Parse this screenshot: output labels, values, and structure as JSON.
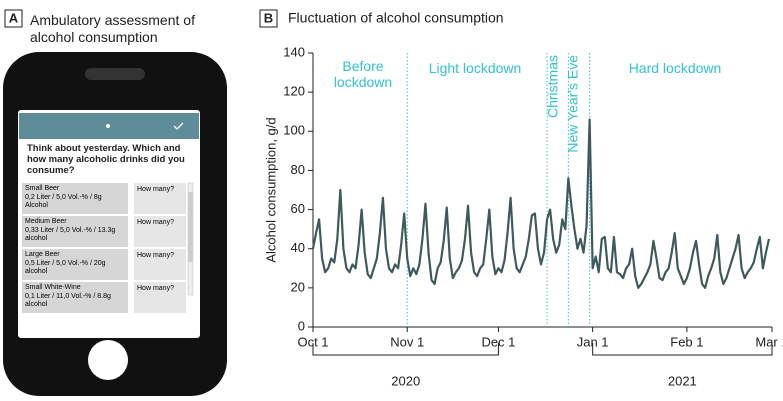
{
  "panel_a": {
    "label": "A",
    "title": "Ambulatory assessment of alcohol consumption",
    "question": "Think about yesterday. Which and how many alcoholic drinks did you consume?",
    "items": [
      {
        "name": "Small Beer",
        "detail": "0,2 Liter / 5,0 Vol.-% / 8g Alcohol",
        "prompt": "How many?"
      },
      {
        "name": "Medium Beer",
        "detail": "0,33 Liter / 5,0 Vol.-% / 13.3g alcohol",
        "prompt": "How many?"
      },
      {
        "name": "Large Beer",
        "detail": "0,5 Liter / 5,0 Vol.-% / 20g alcohol",
        "prompt": "How many?"
      },
      {
        "name": "Small White-Wine",
        "detail": "0,1 Liter / 11,0 Vol.-% / 8.8g alcohol",
        "prompt": "How many?"
      }
    ]
  },
  "chart_data": {
    "type": "line",
    "panel_label": "B",
    "title": "Fluctuation of alcohol consumption",
    "y_label": "Alcohol consumption, g/d",
    "color": "#3f5a5e",
    "xlim": [
      0,
      151
    ],
    "xticks": [
      {
        "value": 0,
        "label": "Oct 1"
      },
      {
        "value": 31,
        "label": "Nov 1"
      },
      {
        "value": 61,
        "label": "Dec 1"
      },
      {
        "value": 92,
        "label": "Jan 1"
      },
      {
        "value": 123,
        "label": "Feb 1"
      },
      {
        "value": 151,
        "label": "Mar 1"
      }
    ],
    "ylim": [
      0,
      140
    ],
    "yticks": [
      0,
      20,
      40,
      60,
      80,
      100,
      120,
      140
    ],
    "phase_lines": [
      31,
      77,
      84,
      91
    ],
    "annotations": [
      "Before lockdown",
      "Light lockdown",
      "Christmas",
      "New Year's Eve",
      "Hard lockdown"
    ],
    "year_spans": [
      {
        "label": "2020",
        "start": 0,
        "end": 61
      },
      {
        "label": "2021",
        "start": 92,
        "end": 151
      }
    ],
    "x": [
      0,
      1,
      2,
      3,
      4,
      5,
      6,
      7,
      8,
      9,
      10,
      11,
      12,
      13,
      14,
      15,
      16,
      17,
      18,
      19,
      20,
      21,
      22,
      23,
      24,
      25,
      26,
      27,
      28,
      29,
      30,
      31,
      32,
      33,
      34,
      35,
      36,
      37,
      38,
      39,
      40,
      41,
      42,
      43,
      44,
      45,
      46,
      47,
      48,
      49,
      50,
      51,
      52,
      53,
      54,
      55,
      56,
      57,
      58,
      59,
      60,
      61,
      62,
      63,
      64,
      65,
      66,
      67,
      68,
      69,
      70,
      71,
      72,
      73,
      74,
      75,
      76,
      77,
      78,
      79,
      80,
      81,
      82,
      83,
      84,
      85,
      86,
      87,
      88,
      89,
      90,
      91,
      92,
      93,
      94,
      95,
      96,
      97,
      98,
      99,
      100,
      101,
      102,
      103,
      104,
      105,
      106,
      107,
      108,
      109,
      110,
      111,
      112,
      113,
      114,
      115,
      116,
      117,
      118,
      119,
      120,
      121,
      122,
      123,
      124,
      125,
      126,
      127,
      128,
      129,
      130,
      131,
      132,
      133,
      134,
      135,
      136,
      137,
      138,
      139,
      140,
      141,
      142,
      143,
      144,
      145,
      146,
      147,
      148,
      149,
      150
    ],
    "values": [
      40,
      48,
      55,
      35,
      28,
      30,
      35,
      33,
      45,
      70,
      40,
      30,
      28,
      32,
      30,
      42,
      60,
      38,
      27,
      25,
      30,
      35,
      48,
      66,
      40,
      30,
      28,
      32,
      30,
      42,
      58,
      35,
      26,
      30,
      27,
      32,
      45,
      63,
      38,
      24,
      22,
      30,
      33,
      44,
      61,
      35,
      25,
      28,
      30,
      34,
      45,
      62,
      38,
      28,
      26,
      30,
      32,
      45,
      60,
      36,
      27,
      30,
      28,
      34,
      48,
      66,
      40,
      30,
      28,
      32,
      36,
      45,
      57,
      58,
      40,
      32,
      38,
      55,
      60,
      45,
      38,
      42,
      55,
      50,
      76,
      62,
      50,
      40,
      45,
      38,
      52,
      106,
      30,
      36,
      28,
      45,
      46,
      30,
      28,
      46,
      28,
      27,
      25,
      30,
      32,
      40,
      26,
      20,
      22,
      25,
      28,
      32,
      44,
      35,
      25,
      24,
      28,
      30,
      38,
      48,
      30,
      26,
      22,
      25,
      30,
      38,
      44,
      32,
      22,
      20,
      26,
      30,
      35,
      47,
      28,
      22,
      25,
      30,
      35,
      40,
      47,
      30,
      25,
      28,
      30,
      33,
      40,
      46,
      30,
      38,
      45
    ]
  }
}
